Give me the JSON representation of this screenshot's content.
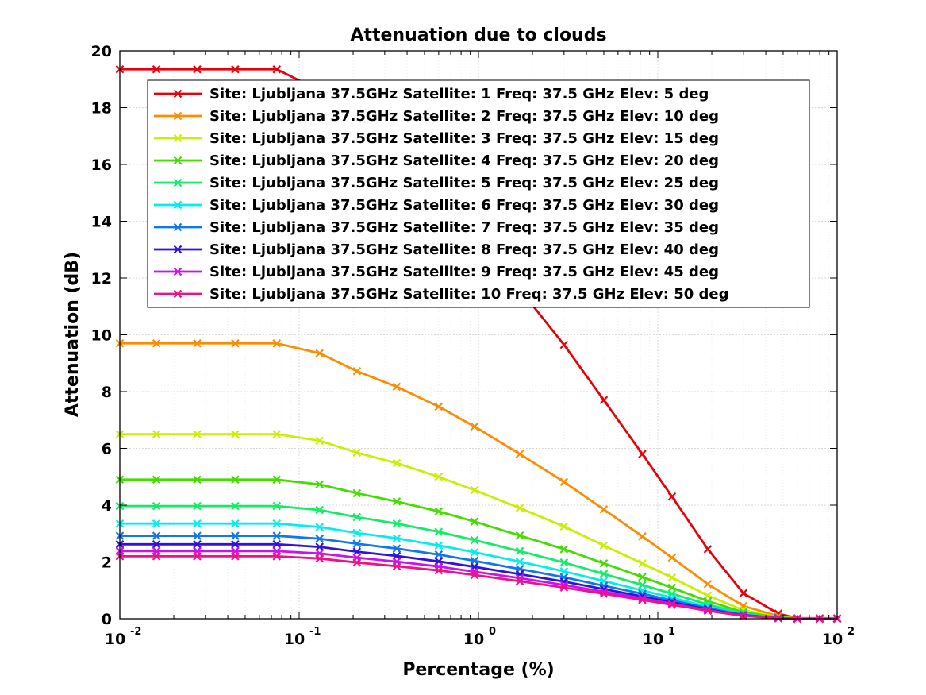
{
  "chart_data": {
    "type": "line",
    "title": "Attenuation due to clouds",
    "xlabel": "Percentage (%)",
    "ylabel": "Attenuation (dB)",
    "xscale": "log",
    "xlim": [
      0.01,
      100
    ],
    "ylim": [
      0,
      20
    ],
    "x_ticks": [
      0.01,
      0.1,
      1,
      10,
      100
    ],
    "x_tick_labels": [
      {
        "base": "10",
        "exp": "-2"
      },
      {
        "base": "10",
        "exp": "-1"
      },
      {
        "base": "10",
        "exp": "0"
      },
      {
        "base": "10",
        "exp": "1"
      },
      {
        "base": "10",
        "exp": "2"
      }
    ],
    "y_ticks": [
      0,
      2,
      4,
      6,
      8,
      10,
      12,
      14,
      16,
      18,
      20
    ],
    "grid": true,
    "legend_position": "top-right",
    "marker": "x",
    "x": [
      0.01,
      0.016,
      0.027,
      0.044,
      0.075,
      0.13,
      0.21,
      0.35,
      0.6,
      0.95,
      1.7,
      3,
      5,
      8.2,
      12,
      19,
      30,
      47,
      60,
      80,
      100
    ],
    "series": [
      {
        "name": "Site: Ljubljana 37.5GHz Satellite: 1 Freq: 37.5 GHz Elev: 5 deg",
        "color": "#e8000b",
        "values": [
          19.35,
          19.35,
          19.35,
          19.35,
          19.35,
          18.6,
          17.4,
          16.3,
          14.9,
          13.5,
          11.6,
          9.65,
          7.7,
          5.8,
          4.3,
          2.45,
          0.9,
          0.18,
          0.02,
          0.02,
          0.02
        ]
      },
      {
        "name": "Site: Ljubljana 37.5GHz Satellite: 2 Freq: 37.5 GHz Elev: 10 deg",
        "color": "#ff8c00",
        "values": [
          9.7,
          9.7,
          9.7,
          9.7,
          9.7,
          9.35,
          8.72,
          8.17,
          7.47,
          6.77,
          5.8,
          4.82,
          3.85,
          2.9,
          2.15,
          1.22,
          0.45,
          0.09,
          0.01,
          0.01,
          0.01
        ]
      },
      {
        "name": "Site: Ljubljana 37.5GHz Satellite: 3 Freq: 37.5 GHz Elev: 15 deg",
        "color": "#ccee00",
        "values": [
          6.5,
          6.5,
          6.5,
          6.5,
          6.5,
          6.27,
          5.85,
          5.48,
          5.0,
          4.53,
          3.9,
          3.25,
          2.58,
          1.95,
          1.45,
          0.82,
          0.3,
          0.06,
          0.01,
          0.01,
          0.01
        ]
      },
      {
        "name": "Site: Ljubljana 37.5GHz Satellite: 4 Freq: 37.5 GHz Elev: 20 deg",
        "color": "#44dd00",
        "values": [
          4.9,
          4.9,
          4.9,
          4.9,
          4.9,
          4.73,
          4.42,
          4.13,
          3.78,
          3.42,
          2.93,
          2.45,
          1.95,
          1.47,
          1.09,
          0.62,
          0.23,
          0.05,
          0.0,
          0.0,
          0.0
        ]
      },
      {
        "name": "Site: Ljubljana 37.5GHz Satellite: 5 Freq: 37.5 GHz Elev: 25 deg",
        "color": "#11ee66",
        "values": [
          3.97,
          3.97,
          3.97,
          3.97,
          3.97,
          3.83,
          3.58,
          3.35,
          3.06,
          2.77,
          2.38,
          1.98,
          1.58,
          1.19,
          0.88,
          0.5,
          0.18,
          0.04,
          0.0,
          0.0,
          0.0
        ]
      },
      {
        "name": "Site: Ljubljana 37.5GHz Satellite: 6 Freq: 37.5 GHz Elev: 30 deg",
        "color": "#00eeee",
        "values": [
          3.35,
          3.35,
          3.35,
          3.35,
          3.35,
          3.23,
          3.02,
          2.83,
          2.58,
          2.34,
          2.01,
          1.67,
          1.33,
          1.0,
          0.74,
          0.42,
          0.16,
          0.03,
          0.0,
          0.0,
          0.0
        ]
      },
      {
        "name": "Site: Ljubljana 37.5GHz Satellite: 7 Freq: 37.5 GHz Elev: 35 deg",
        "color": "#1177ee",
        "values": [
          2.92,
          2.92,
          2.92,
          2.92,
          2.92,
          2.82,
          2.64,
          2.47,
          2.26,
          2.04,
          1.75,
          1.46,
          1.16,
          0.88,
          0.65,
          0.37,
          0.14,
          0.03,
          0.0,
          0.0,
          0.0
        ]
      },
      {
        "name": "Site: Ljubljana 37.5GHz Satellite: 8 Freq: 37.5 GHz Elev: 40 deg",
        "color": "#3311dd",
        "values": [
          2.62,
          2.62,
          2.62,
          2.62,
          2.62,
          2.53,
          2.36,
          2.21,
          2.02,
          1.83,
          1.57,
          1.31,
          1.04,
          0.79,
          0.58,
          0.33,
          0.12,
          0.02,
          0.0,
          0.0,
          0.0
        ]
      },
      {
        "name": "Site: Ljubljana 37.5GHz Satellite: 9 Freq: 37.5 GHz Elev: 45 deg",
        "color": "#cc11ee",
        "values": [
          2.38,
          2.38,
          2.38,
          2.38,
          2.38,
          2.3,
          2.15,
          2.01,
          1.84,
          1.66,
          1.43,
          1.19,
          0.95,
          0.72,
          0.53,
          0.3,
          0.11,
          0.02,
          0.0,
          0.0,
          0.0
        ]
      },
      {
        "name": "Site: Ljubljana 37.5GHz Satellite: 10 Freq: 37.5 GHz Elev: 50 deg",
        "color": "#ee1188",
        "values": [
          2.2,
          2.2,
          2.2,
          2.2,
          2.2,
          2.12,
          1.98,
          1.85,
          1.7,
          1.54,
          1.32,
          1.1,
          0.88,
          0.66,
          0.49,
          0.28,
          0.1,
          0.02,
          0.0,
          0.0,
          0.0
        ]
      }
    ]
  }
}
